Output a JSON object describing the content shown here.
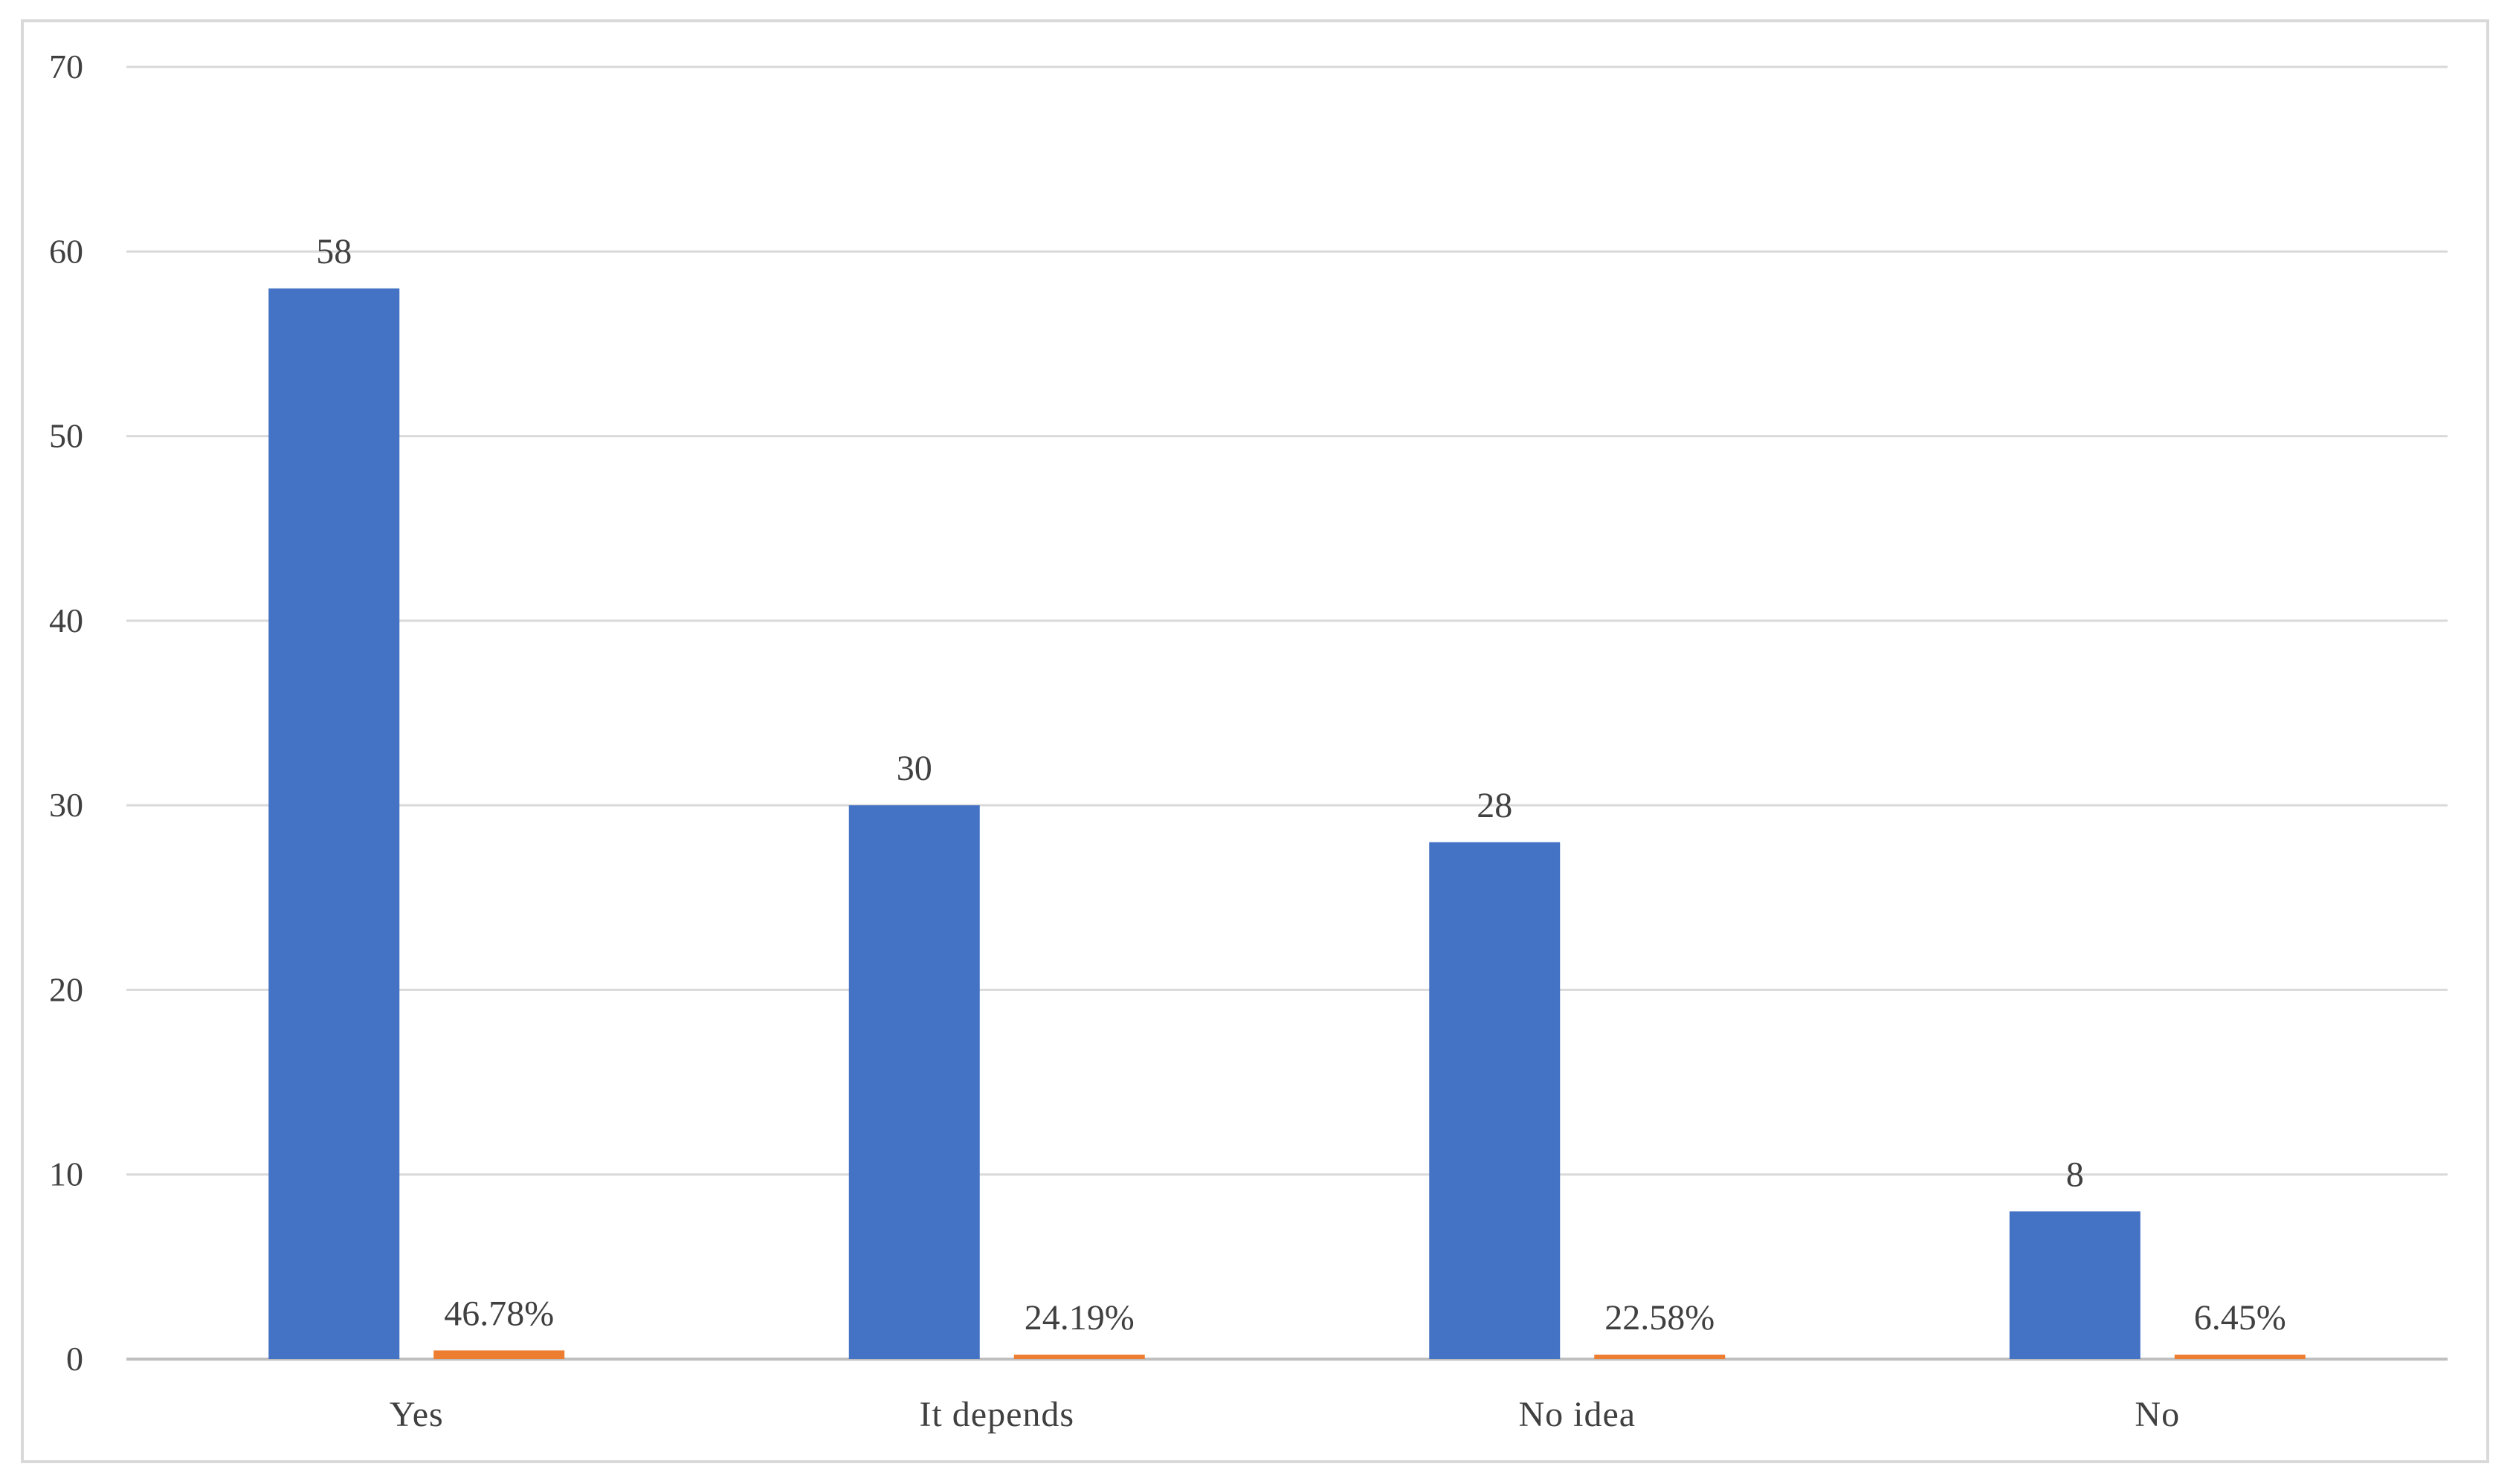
{
  "chart_data": {
    "type": "bar",
    "categories": [
      "Yes",
      "It depends",
      "No idea",
      "No"
    ],
    "series": [
      {
        "values": [
          58,
          30,
          28,
          8
        ],
        "labels": [
          "58",
          "30",
          "28",
          "8"
        ],
        "color": "#4472C4"
      },
      {
        "values": [
          0.4678,
          0.2419,
          0.2258,
          0.0645
        ],
        "labels": [
          "46.78%",
          "24.19%",
          "22.58%",
          "6.45%"
        ],
        "color": "#ED7D31"
      }
    ],
    "y_ticks": [
      "0",
      "10",
      "20",
      "30",
      "40",
      "50",
      "60",
      "70"
    ],
    "ylim": [
      0,
      70
    ],
    "grid": true,
    "gridline_color": "#d9d9d9",
    "axis_color": "#bfbfbf",
    "title": "",
    "xlabel": "",
    "ylabel": ""
  }
}
